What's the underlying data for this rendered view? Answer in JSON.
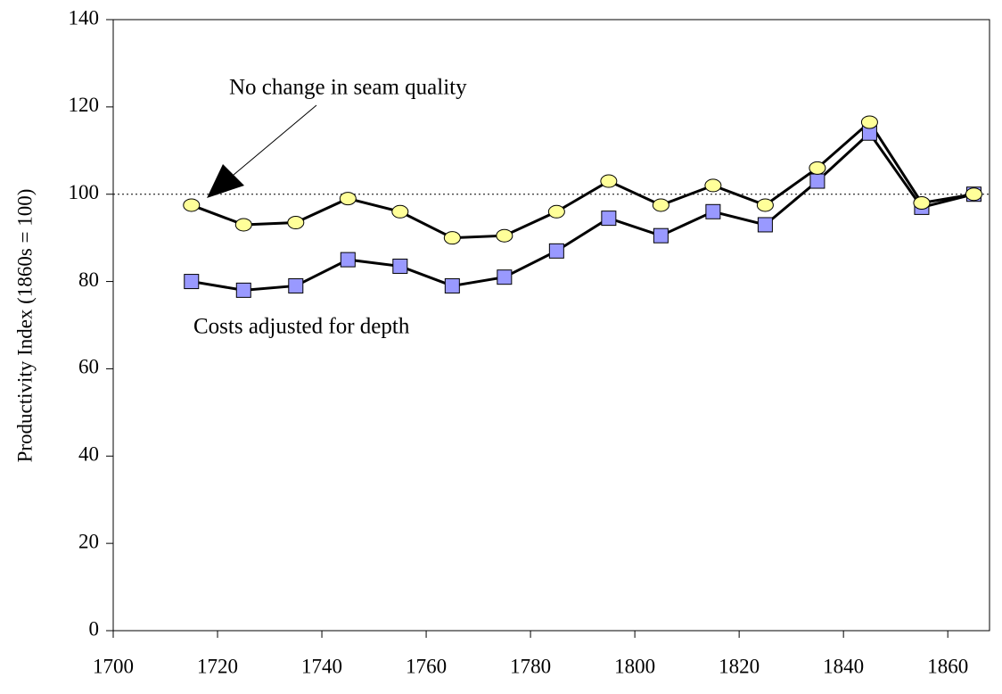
{
  "chart_data": {
    "type": "line",
    "y_label": "Productivity Index (1860s = 100)",
    "x": [
      1715,
      1725,
      1735,
      1745,
      1755,
      1765,
      1775,
      1785,
      1795,
      1805,
      1815,
      1825,
      1835,
      1845,
      1855,
      1865
    ],
    "series": [
      {
        "name": "No change in seam quality",
        "color": "#ffff99",
        "marker": "circle",
        "values": [
          97.5,
          93,
          93.5,
          99,
          96,
          90,
          90.5,
          96,
          103,
          97.5,
          102,
          97.5,
          106,
          116.5,
          98,
          100
        ]
      },
      {
        "name": "Costs adjusted for depth",
        "color": "#9999ff",
        "marker": "square",
        "values": [
          80,
          78,
          79,
          85,
          83.5,
          79,
          81,
          87,
          94.5,
          90.5,
          96,
          93,
          103,
          114,
          97,
          100
        ]
      }
    ],
    "reference_line": 100,
    "xlim": [
      1700,
      1868
    ],
    "xticks": [
      1700,
      1720,
      1740,
      1760,
      1780,
      1800,
      1820,
      1840,
      1860
    ],
    "ylim": [
      0,
      140
    ],
    "yticks": [
      0,
      20,
      40,
      60,
      80,
      100,
      120,
      140
    ]
  }
}
